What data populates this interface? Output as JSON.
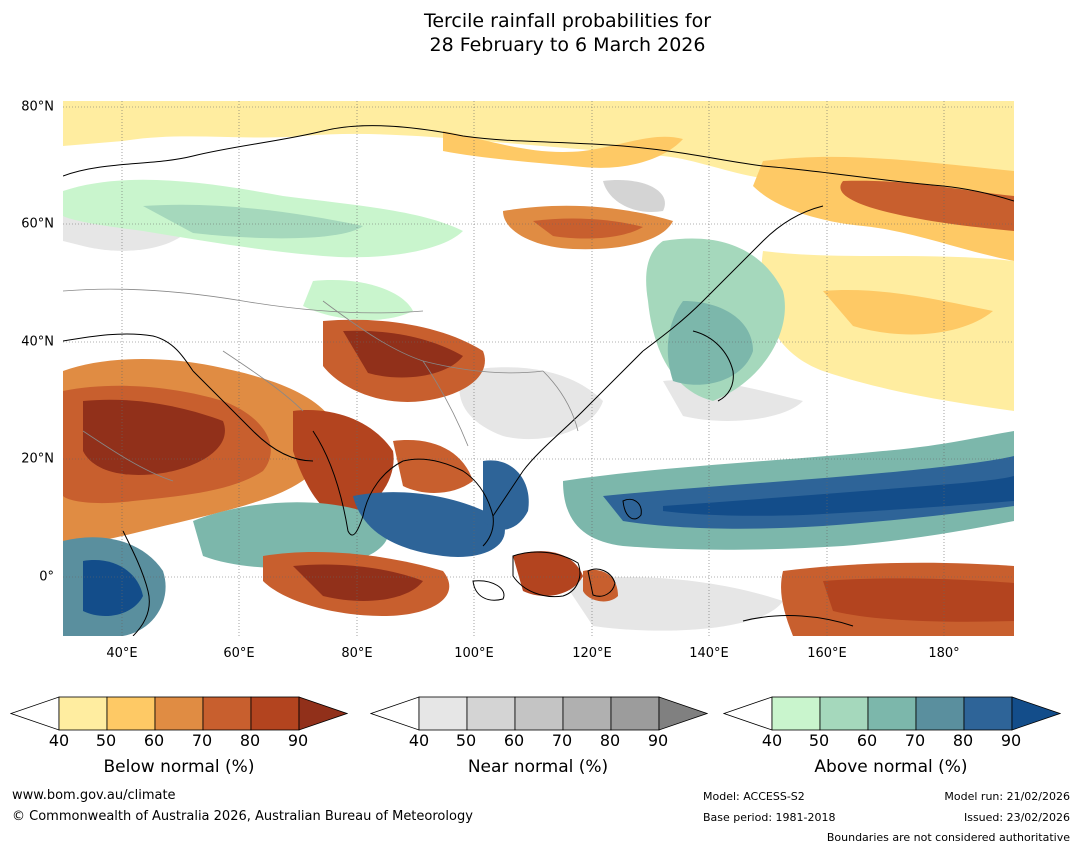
{
  "title": {
    "line1": "Tercile rainfall probabilities for",
    "line2": "28 February to 6 March 2026"
  },
  "map": {
    "lat_labels": [
      "80°N",
      "60°N",
      "40°N",
      "20°N",
      "0°"
    ],
    "lon_labels": [
      "40°E",
      "60°E",
      "80°E",
      "100°E",
      "120°E",
      "140°E",
      "160°E",
      "180°"
    ],
    "extent": {
      "lon": [
        30,
        192
      ],
      "lat": [
        -10,
        81
      ]
    }
  },
  "colorbars": {
    "below": {
      "label": "Below normal (%)",
      "ticks": [
        "40",
        "50",
        "60",
        "70",
        "80",
        "90"
      ],
      "colors": [
        "#ffeda0",
        "#fec965",
        "#e08c43",
        "#c85f2e",
        "#b3441f",
        "#91301a"
      ]
    },
    "near": {
      "label": "Near normal (%)",
      "ticks": [
        "40",
        "50",
        "60",
        "70",
        "80",
        "90"
      ],
      "colors": [
        "#e6e6e6",
        "#d4d4d4",
        "#c4c4c4",
        "#b0b0b0",
        "#9c9c9c",
        "#808080"
      ]
    },
    "above": {
      "label": "Above normal (%)",
      "ticks": [
        "40",
        "50",
        "60",
        "70",
        "80",
        "90"
      ],
      "colors": [
        "#c9f5cd",
        "#a5d8bc",
        "#7cb7ab",
        "#5a8f9e",
        "#2e6498",
        "#134d8a"
      ]
    }
  },
  "footer": {
    "website": "www.bom.gov.au/climate",
    "copyright": "© Commonwealth of Australia 2026, Australian Bureau of Meteorology",
    "model": "Model: ACCESS-S2",
    "base_period": "Base period: 1981-2018",
    "model_run": "Model run: 21/02/2026",
    "issued": "Issued: 23/02/2026",
    "disclaimer": "Boundaries are not considered authoritative"
  }
}
